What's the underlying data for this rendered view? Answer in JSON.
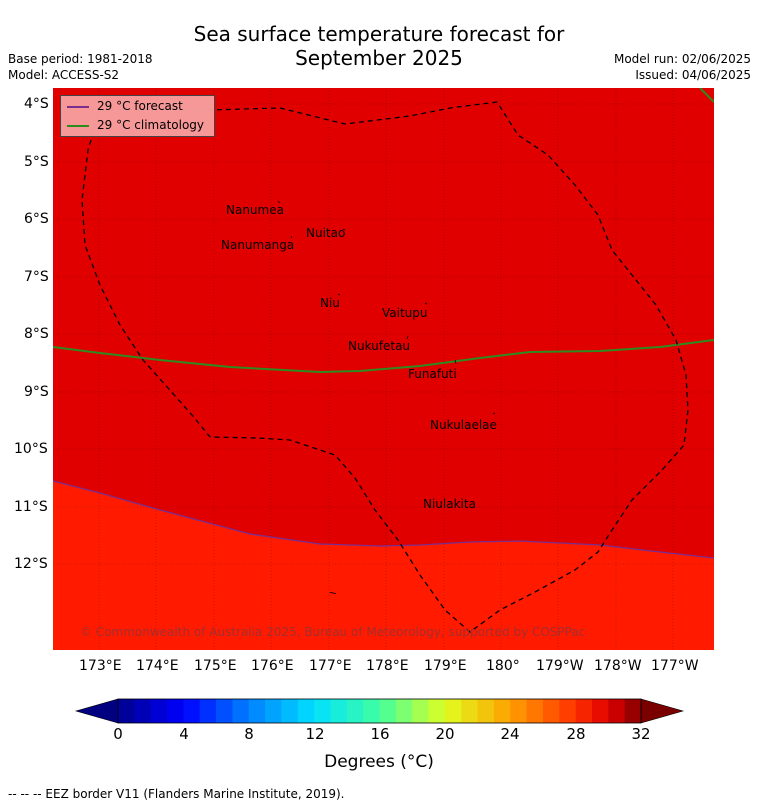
{
  "title": {
    "line1": "Sea surface temperature forecast for",
    "line2": "September 2025"
  },
  "meta_left": {
    "base_period": "Base period: 1981-2018",
    "model": "Model: ACCESS-S2"
  },
  "meta_right": {
    "model_run": "Model run: 02/06/2025",
    "issued": "Issued: 04/06/2025"
  },
  "legend": {
    "forecast_label": "29 °C  forecast",
    "climatology_label": "29 °C  climatology",
    "forecast_color": "#7b2d8e",
    "climatology_color": "#2e8b1e"
  },
  "lat_ticks": [
    "4°S",
    "5°S",
    "6°S",
    "7°S",
    "8°S",
    "9°S",
    "10°S",
    "11°S",
    "12°S"
  ],
  "lon_ticks": [
    "173°E",
    "174°E",
    "175°E",
    "176°E",
    "177°E",
    "178°E",
    "179°E",
    "180°",
    "179°W",
    "178°W",
    "177°W"
  ],
  "places": [
    "Nanumea",
    "Nuitao",
    "Nanumanga",
    "Niu",
    "Vaitupu",
    "Nukufetau",
    "Funafuti",
    "Nukulaelae",
    "Niulakita"
  ],
  "copyright": "© Commonwealth of Australia 2025, Bureau of Meteorology, supported by COSPPac",
  "colorbar": {
    "ticks": [
      "0",
      "4",
      "8",
      "12",
      "16",
      "20",
      "24",
      "28",
      "32"
    ],
    "unit_label": "Degrees (°C)",
    "min": 0,
    "max": 32
  },
  "footer": "--  --  -- EEZ border V11 (Flanders Marine Institute, 2019).",
  "colors": {
    "warm_above_29": "#e00000",
    "cooler_28_29": "#ff1a00",
    "eez_border": "#000000"
  }
}
